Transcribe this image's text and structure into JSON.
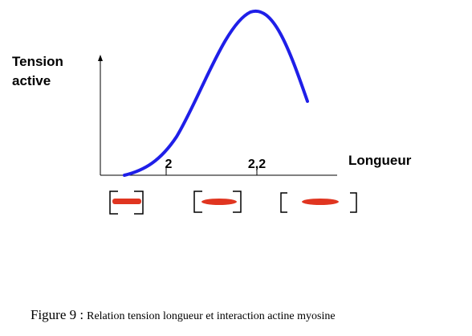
{
  "y_label": [
    "Tension",
    "active"
  ],
  "x_label": "Longueur",
  "ticks": [
    "2",
    "2,2"
  ],
  "caption": {
    "prefix": "Figure 9 :",
    "text": "Relation tension longueur et interaction actine myosine"
  }
}
